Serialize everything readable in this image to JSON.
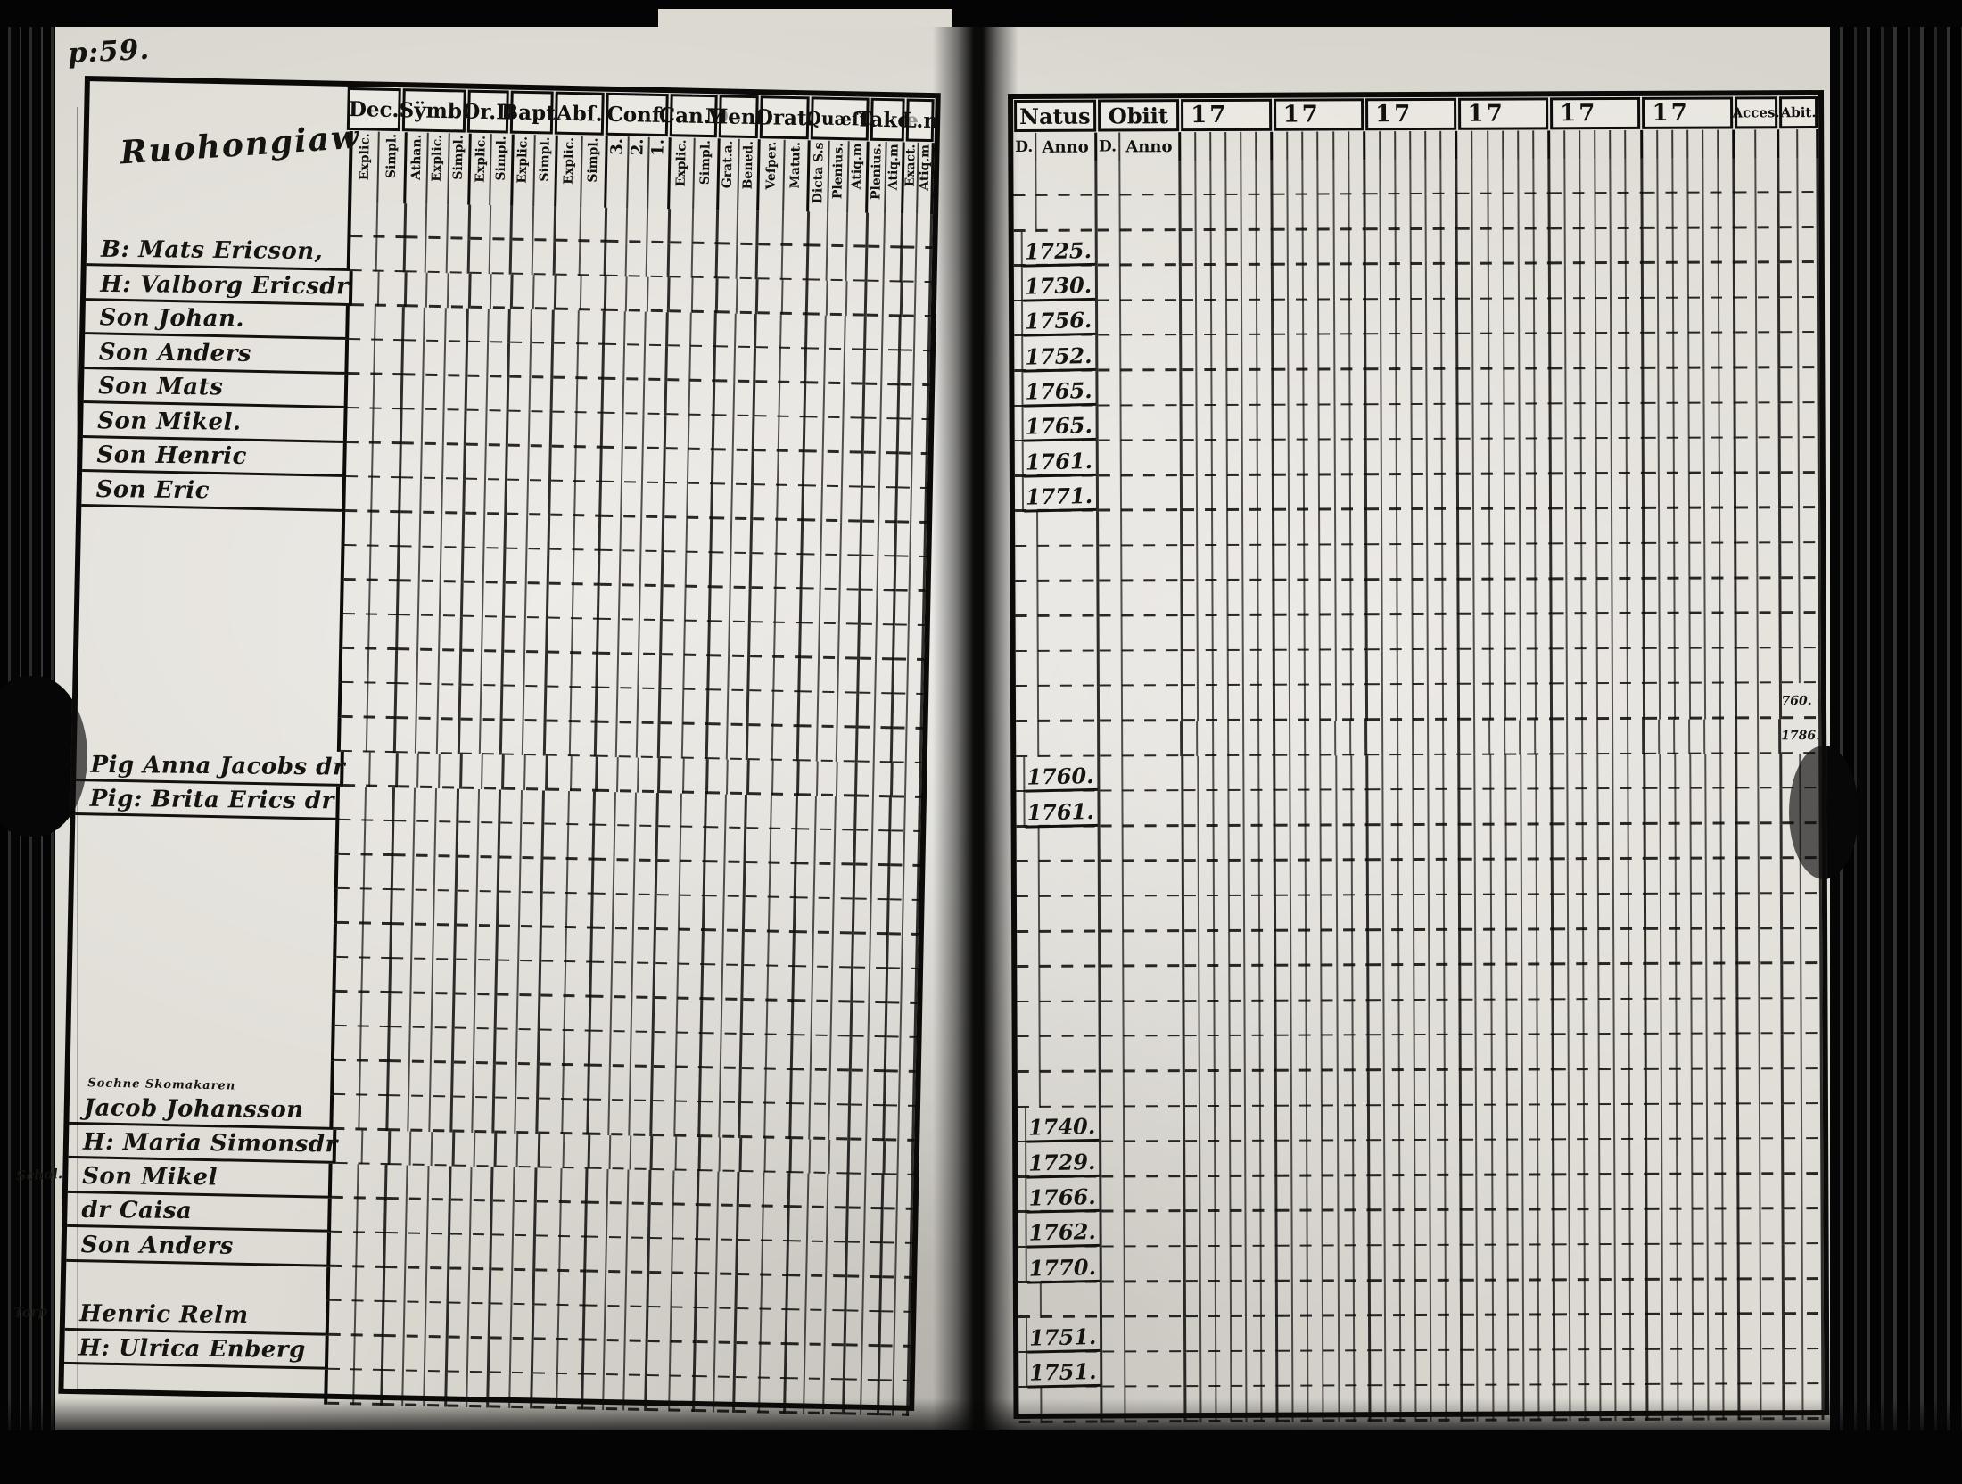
{
  "film": {
    "page_label": "p:59."
  },
  "left_page": {
    "script_title": "Ruohongiaw",
    "columns": [
      {
        "label": "Dec.",
        "subs": [
          "Explic.",
          "Simpl."
        ]
      },
      {
        "label": "Sÿmb.",
        "subs": [
          "Athan.",
          "Explic.",
          "Simpl."
        ]
      },
      {
        "label": "Or.D",
        "subs": [
          "Explic.",
          "Simpl."
        ]
      },
      {
        "label": "Bapt.",
        "subs": [
          "Explic.",
          "Simpl."
        ]
      },
      {
        "label": "Abſ.",
        "subs": [
          "Explic.",
          "Simpl."
        ]
      },
      {
        "label": "Conf.",
        "subs": [
          "3.",
          "2.",
          "1."
        ]
      },
      {
        "label": "Can.D",
        "subs": [
          "Explic.",
          "Simpl."
        ]
      },
      {
        "label": "Menſ.",
        "subs": [
          "Grat.a.",
          "Bened."
        ]
      },
      {
        "label": "Orat.",
        "subs": [
          "Veſper.",
          "Matut."
        ]
      },
      {
        "label": "Quæſt.",
        "subs": [
          "Dicta S.s",
          "Plenius.",
          "Atiq.m"
        ]
      },
      {
        "label": "Takœ",
        "subs": [
          "Plenius.",
          "Atiq.m"
        ]
      },
      {
        "label": "L.n",
        "subs": [
          "Exact.",
          "Atiq.m"
        ]
      }
    ],
    "rows": 35,
    "entries": [
      {
        "row": 1,
        "name": "B: Mats Ericson,"
      },
      {
        "row": 2,
        "name": "H: Valborg Ericsdr"
      },
      {
        "row": 3,
        "name": "Son Johan."
      },
      {
        "row": 4,
        "name": "Son Anders"
      },
      {
        "row": 5,
        "name": "Son Mats"
      },
      {
        "row": 6,
        "name": "Son Mikel."
      },
      {
        "row": 7,
        "name": "Son Henric"
      },
      {
        "row": 8,
        "name": "Son Eric"
      },
      {
        "row": 16,
        "name": "Pig Anna Jacobs dr"
      },
      {
        "row": 17,
        "name": "Pig: Brita Erics dr"
      },
      {
        "row": 26,
        "name": "Jacob Johansson",
        "note_above": "Sochne Skomakaren"
      },
      {
        "row": 27,
        "name": "H: Maria Simonsdr"
      },
      {
        "row": 28,
        "name": "Son Mikel",
        "margin": "Schol."
      },
      {
        "row": 29,
        "name": "dr Caisa"
      },
      {
        "row": 30,
        "name": "Son Anders"
      },
      {
        "row": 32,
        "name": "Henric Relm",
        "margin": "Torp"
      },
      {
        "row": 33,
        "name": "H: Ulrica Enberg"
      }
    ]
  },
  "right_page": {
    "natus_label": "Natus",
    "obiit_label": "Obiit",
    "day_label": "D.",
    "anno_label": "Anno",
    "decade_labels": [
      "17",
      "17",
      "17",
      "17",
      "17",
      "17"
    ],
    "acces_label": "Acces.",
    "abit_label": "Abit.",
    "rows": 36,
    "natus_years": [
      {
        "row": 2,
        "year": "1725."
      },
      {
        "row": 3,
        "year": "1730."
      },
      {
        "row": 4,
        "year": "1756."
      },
      {
        "row": 5,
        "year": "1752."
      },
      {
        "row": 6,
        "year": "1765."
      },
      {
        "row": 7,
        "year": "1765."
      },
      {
        "row": 8,
        "year": "1761."
      },
      {
        "row": 9,
        "year": "1771."
      },
      {
        "row": 17,
        "year": "1760."
      },
      {
        "row": 18,
        "year": "1761."
      },
      {
        "row": 27,
        "year": "1740."
      },
      {
        "row": 28,
        "year": "1729."
      },
      {
        "row": 29,
        "year": "1766."
      },
      {
        "row": 30,
        "year": "1762."
      },
      {
        "row": 31,
        "year": "1770."
      },
      {
        "row": 33,
        "year": "1751."
      },
      {
        "row": 34,
        "year": "1751."
      }
    ],
    "abit_notes": [
      {
        "row": 15,
        "text": "760."
      },
      {
        "row": 16,
        "text": "1786."
      }
    ]
  },
  "colors": {
    "ink": "#161411",
    "paper": "#d7d4cc",
    "line": "#0d0c0b"
  }
}
